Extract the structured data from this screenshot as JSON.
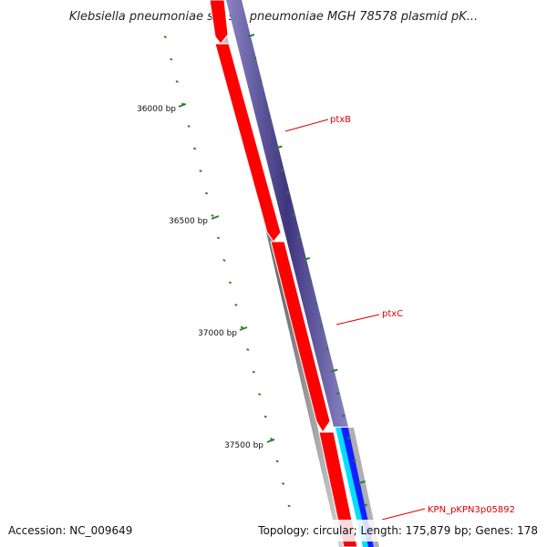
{
  "title": "Klebsiella pneumoniae subsp. pneumoniae MGH 78578 plasmid pK...",
  "footer": {
    "accession": "Accession: NC_009649",
    "summary": "Topology: circular; Length: 175,879 bp; Genes: 178"
  },
  "ruler": {
    "labels": [
      "36000 bp",
      "36500 bp",
      "37000 bp",
      "37500 bp"
    ]
  },
  "genes": {
    "labels": [
      "ptxB",
      "ptxC",
      "KPN_pKPN3p05892"
    ]
  },
  "colors": {
    "cds": "#ff0000",
    "backbone": "#808080",
    "cog_track": "#4a3f8a",
    "tick": "#2e7d32",
    "label": "#e00000",
    "cyan": "#00e0ff",
    "blue": "#1020ff"
  }
}
